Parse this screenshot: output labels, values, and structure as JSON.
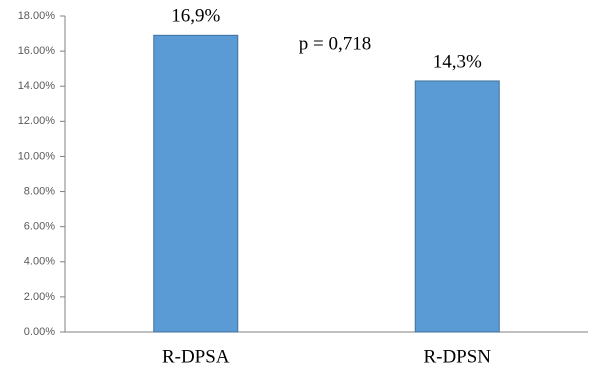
{
  "chart_data": {
    "type": "bar",
    "categories": [
      "R-DPSA",
      "R-DPSN"
    ],
    "values": [
      16.9,
      14.3
    ],
    "value_labels": [
      "16,9%",
      "14,3%"
    ],
    "annotation": "p = 0,718",
    "color": "#5b9bd5",
    "ylim": [
      0,
      18
    ],
    "yticks": [
      {
        "value": 0,
        "label": "0.00%"
      },
      {
        "value": 2,
        "label": "2.00%"
      },
      {
        "value": 4,
        "label": "4.00%"
      },
      {
        "value": 6,
        "label": "6.00%"
      },
      {
        "value": 8,
        "label": "8.00%"
      },
      {
        "value": 10,
        "label": "10.00%"
      },
      {
        "value": 12,
        "label": "12.00%"
      },
      {
        "value": 14,
        "label": "14.00%"
      },
      {
        "value": 16,
        "label": "16.00%"
      },
      {
        "value": 18,
        "label": "18.00%"
      }
    ],
    "grid": false
  }
}
